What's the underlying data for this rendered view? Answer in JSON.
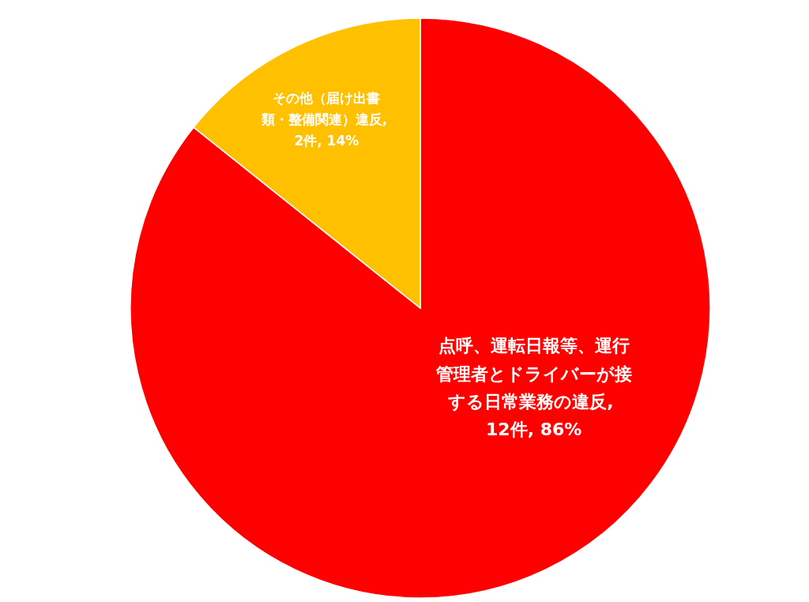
{
  "chart_data": {
    "type": "pie",
    "categories": [
      "点呼、運転日報等、運行管理者とドライバーが接する日常業務の違反",
      "その他（届け出書類・整備関連）違反"
    ],
    "values": [
      12,
      2
    ],
    "colors": [
      "#ff0000",
      "#ffc000"
    ],
    "value_labels": [
      ", 12件, 86%",
      ", 2件, 14%"
    ]
  }
}
